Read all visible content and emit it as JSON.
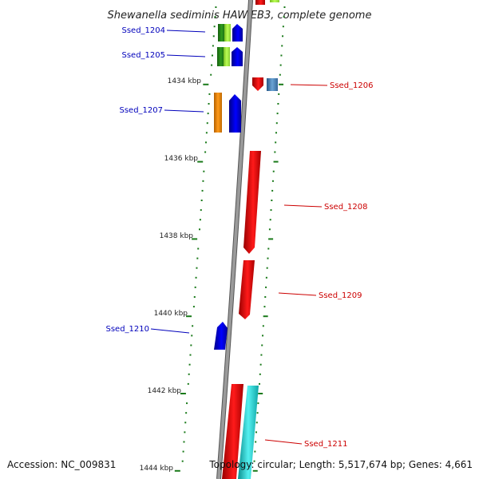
{
  "title": "Shewanella sediminis HAW-EB3, complete genome",
  "accession": "Accession: NC_009831",
  "stats": "Topology: circular; Length: 5,517,674 bp; Genes: 4,661",
  "ticks": [
    {
      "label": "1434 kbp",
      "kbp": 1434
    },
    {
      "label": "1436 kbp",
      "kbp": 1436
    },
    {
      "label": "1438 kbp",
      "kbp": 1438
    },
    {
      "label": "1440 kbp",
      "kbp": 1440
    },
    {
      "label": "1442 kbp",
      "kbp": 1442
    },
    {
      "label": "1444 kbp",
      "kbp": 1444
    }
  ],
  "gene_labels": [
    {
      "name": "Ssed_1204",
      "strand": "forward",
      "color": "#0000bb"
    },
    {
      "name": "Ssed_1205",
      "strand": "forward",
      "color": "#0000bb"
    },
    {
      "name": "Ssed_1206",
      "strand": "reverse",
      "color": "#cc0000"
    },
    {
      "name": "Ssed_1207",
      "strand": "forward",
      "color": "#0000bb"
    },
    {
      "name": "Ssed_1208",
      "strand": "reverse",
      "color": "#cc0000"
    },
    {
      "name": "Ssed_1209",
      "strand": "reverse",
      "color": "#cc0000"
    },
    {
      "name": "Ssed_1210",
      "strand": "forward",
      "color": "#0000bb"
    },
    {
      "name": "Ssed_1211",
      "strand": "reverse",
      "color": "#cc0000"
    }
  ],
  "colors": {
    "backbone": "#8a8a8a",
    "forward_cds": "#0000ee",
    "reverse_cds": "#ee0000",
    "green_feature": "#2e8b1e",
    "lightgreen_feature": "#99e033",
    "orange_feature": "#ee8800",
    "steelblue_feature": "#4682b4",
    "cyan_feature": "#11cccc",
    "tick_mark": "#1a7a1a"
  }
}
